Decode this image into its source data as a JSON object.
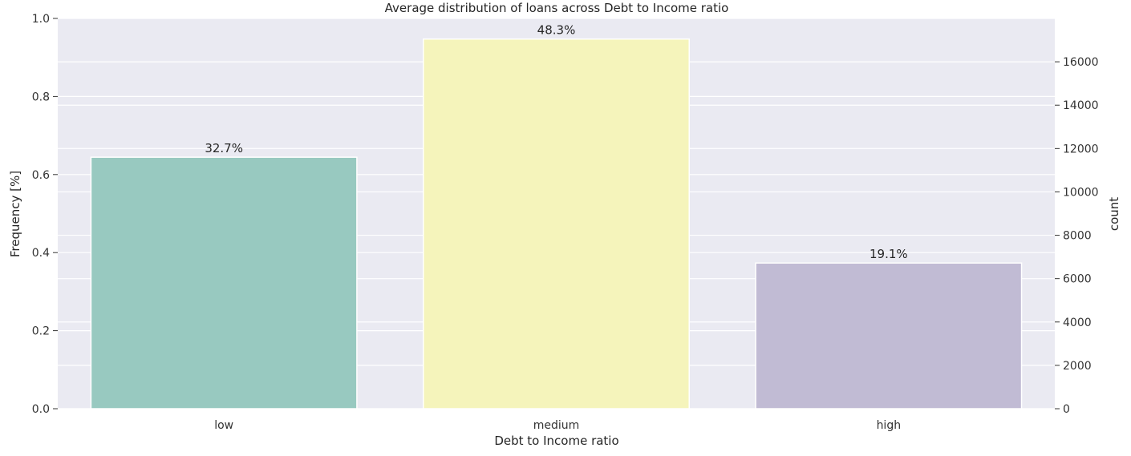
{
  "chart_data": {
    "type": "bar",
    "title": "Average distribution of loans across Debt to Income ratio",
    "xlabel": "Debt to Income ratio",
    "ylabel": "Frequency [%]",
    "y2label": "count",
    "categories": [
      "low",
      "medium",
      "high"
    ],
    "counts": [
      11600,
      17050,
      6720
    ],
    "bar_labels": [
      "32.7%",
      "48.3%",
      "19.1%"
    ],
    "colors": [
      "#98c9c0",
      "#f5f4bb",
      "#c1bbd4"
    ],
    "y_left": {
      "lim": [
        0,
        1.0
      ],
      "ticks": [
        0,
        0.2,
        0.4,
        0.6,
        0.8,
        1.0
      ],
      "tick_labels": [
        "0.0",
        "0.2",
        "0.4",
        "0.6",
        "0.8",
        "1.0"
      ]
    },
    "y_right": {
      "lim": [
        0,
        18000
      ],
      "ticks": [
        0,
        2000,
        4000,
        6000,
        8000,
        10000,
        12000,
        14000,
        16000
      ],
      "tick_labels": [
        "0",
        "2000",
        "4000",
        "6000",
        "8000",
        "10000",
        "12000",
        "14000",
        "16000"
      ]
    },
    "grid": true,
    "background": "#eaeaf2"
  }
}
